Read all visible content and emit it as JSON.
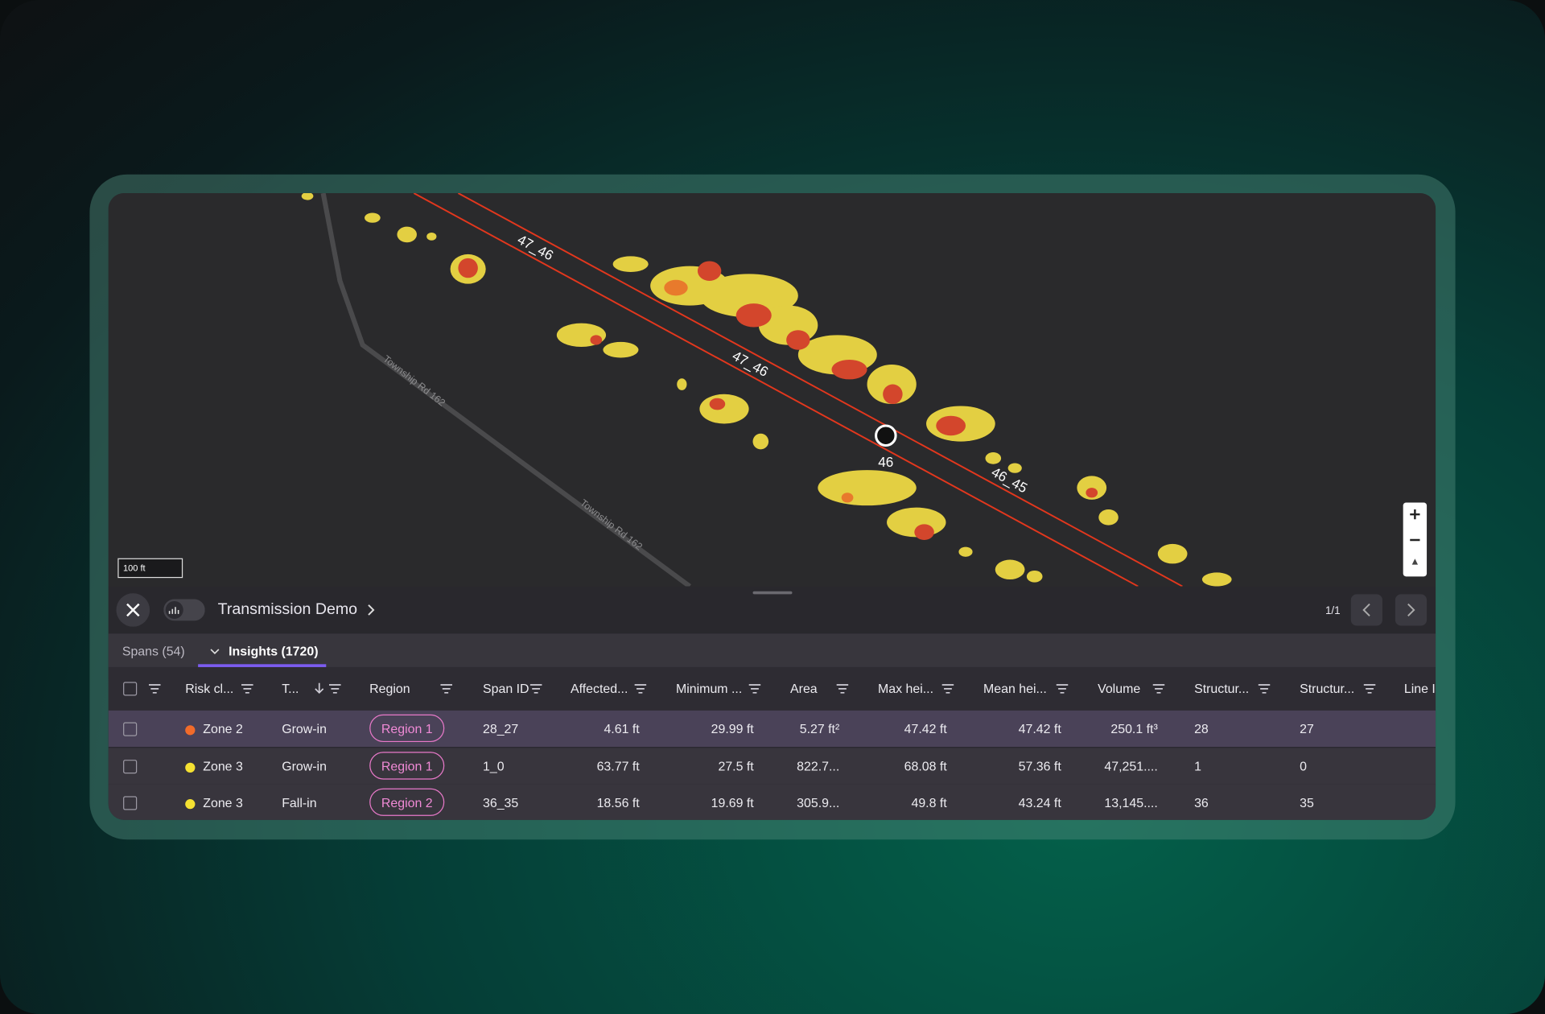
{
  "map": {
    "line_labels": [
      "47_46",
      "47_46",
      "46_45"
    ],
    "node_label": "46",
    "road_labels": [
      "Township Rd 162",
      "Township Rd 162"
    ],
    "scale": "100 ft"
  },
  "toolbar": {
    "title": "Transmission Demo",
    "page": "1/1"
  },
  "tabs": [
    "Spans (54)",
    "Insights (1720)"
  ],
  "table": {
    "headers": [
      "Risk cl...",
      "T...",
      "Region",
      "Span ID",
      "Affected...",
      "Minimum ...",
      "Area",
      "Max hei...",
      "Mean hei...",
      "Volume",
      "Structur...",
      "Structur...",
      "Line I"
    ],
    "risk_colors": [
      "#f26b2a",
      "#f5e132",
      "#f5e132"
    ],
    "rows": [
      [
        "Zone 2",
        "Grow-in",
        "Region 1",
        "28_27",
        "4.61 ft",
        "29.99 ft",
        "5.27 ft²",
        "47.42 ft",
        "47.42 ft",
        "250.1 ft³",
        "28",
        "27"
      ],
      [
        "Zone 3",
        "Grow-in",
        "Region 1",
        "1_0",
        "63.77 ft",
        "27.5 ft",
        "822.7...",
        "68.08 ft",
        "57.36 ft",
        "47,251....",
        "1",
        "0"
      ],
      [
        "Zone 3",
        "Fall-in",
        "Region 2",
        "36_35",
        "18.56 ft",
        "19.69 ft",
        "305.9...",
        "49.8 ft",
        "43.24 ft",
        "13,145....",
        "36",
        "35"
      ]
    ]
  }
}
